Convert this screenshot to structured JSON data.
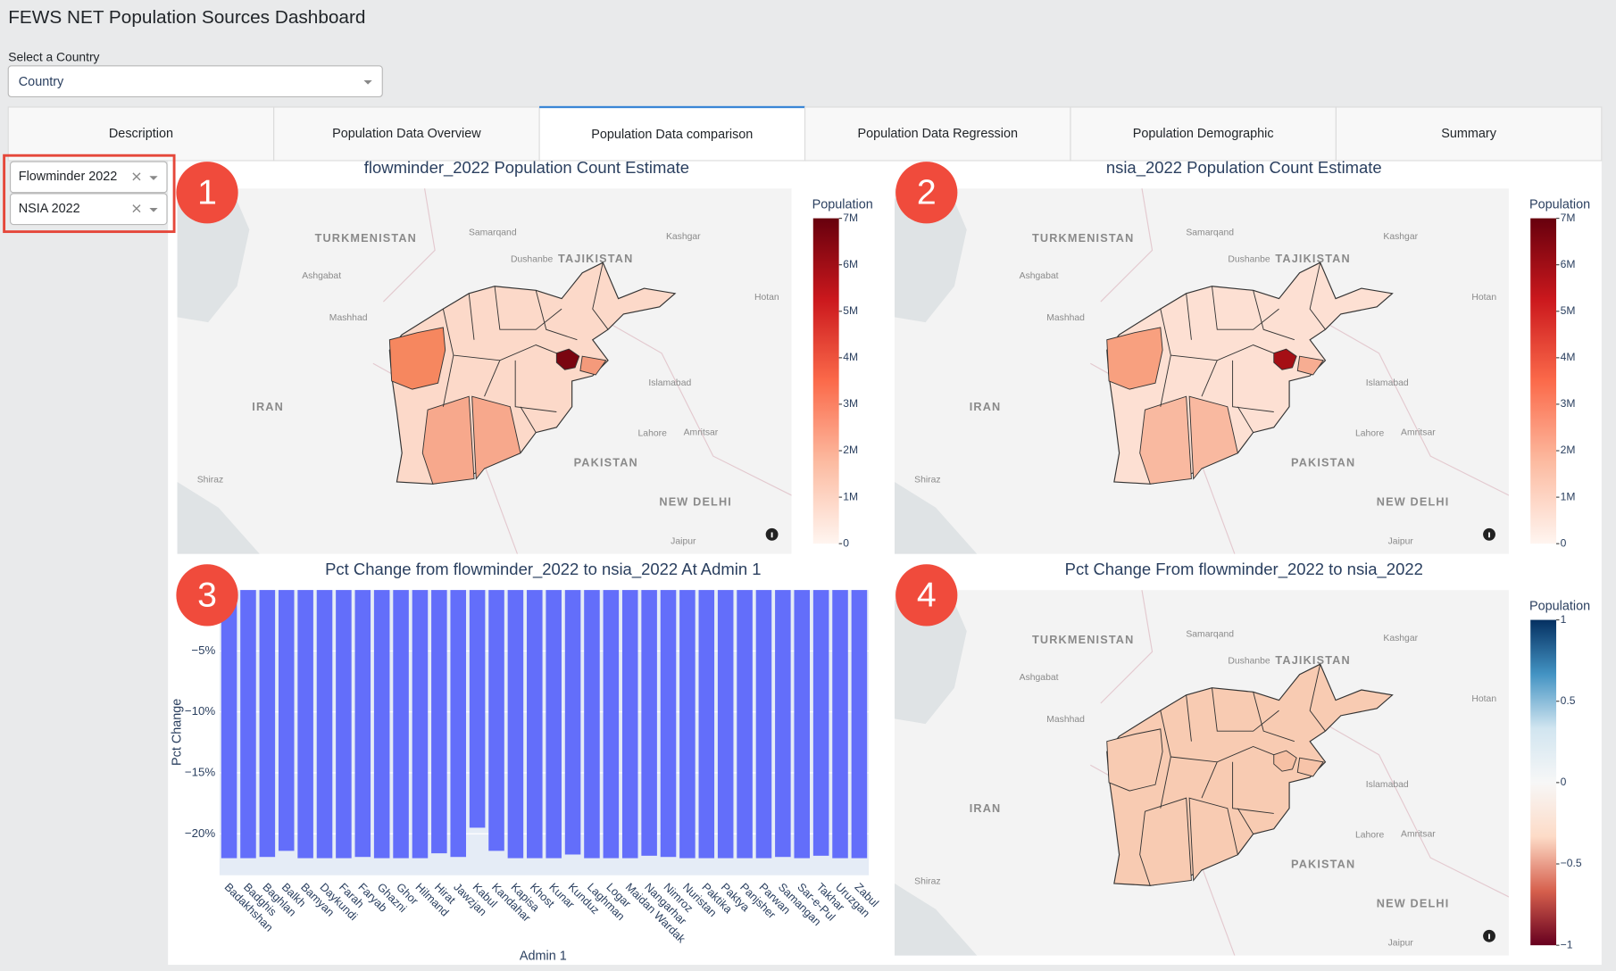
{
  "header": {
    "title": "FEWS NET Population Sources Dashboard",
    "country_label": "Select a Country",
    "country_placeholder": "Country"
  },
  "tabs": [
    "Description",
    "Population Data Overview",
    "Population Data comparison",
    "Population Data Regression",
    "Population Demographic",
    "Summary"
  ],
  "active_tab": 2,
  "sources": [
    "Flowminder 2022",
    "NSIA 2022"
  ],
  "map_places": [
    "TURKMENISTAN",
    "Samarqand",
    "TAJIKISTAN",
    "Kashgar",
    "Ashgabat",
    "Dushanbe",
    "Hotan",
    "Mashhad",
    "IRAN",
    "Islamabad",
    "Lahore",
    "Amritsar",
    "PAKISTAN",
    "Shiraz",
    "NEW DELHI",
    "Jaipur"
  ],
  "chart_data": [
    {
      "type": "map",
      "badge": "1",
      "title": "flowminder_2022 Population Count Estimate",
      "colorbar_title": "Population",
      "clim": [
        0,
        7000000
      ],
      "cticks": [
        0,
        {
          "value": 1000000,
          "label": "1M"
        },
        {
          "value": 2000000,
          "label": "2M"
        },
        {
          "value": 3000000,
          "label": "3M"
        },
        {
          "value": 4000000,
          "label": "4M"
        },
        {
          "value": 5000000,
          "label": "5M"
        },
        {
          "value": 6000000,
          "label": "6M"
        },
        {
          "value": 7000000,
          "label": "7M"
        }
      ],
      "colorscale": [
        "#fff5f0",
        "#fcbba1",
        "#fb6a4a",
        "#cb181d",
        "#67000d"
      ],
      "fills": {
        "base": "#fcd9c9",
        "west": "#f6875f",
        "south": "#f7a88c",
        "east": "#f49a7b",
        "capital": "#7a0510"
      }
    },
    {
      "type": "map",
      "badge": "2",
      "title": "nsia_2022 Population Count Estimate",
      "colorbar_title": "Population",
      "clim": [
        0,
        7000000
      ],
      "cticks": [
        0,
        {
          "value": 1000000,
          "label": "1M"
        },
        {
          "value": 2000000,
          "label": "2M"
        },
        {
          "value": 3000000,
          "label": "3M"
        },
        {
          "value": 4000000,
          "label": "4M"
        },
        {
          "value": 5000000,
          "label": "5M"
        },
        {
          "value": 6000000,
          "label": "6M"
        },
        {
          "value": 7000000,
          "label": "7M"
        }
      ],
      "colorscale": [
        "#fff5f0",
        "#fcbba1",
        "#fb6a4a",
        "#cb181d",
        "#67000d"
      ],
      "fills": {
        "base": "#fde0d3",
        "west": "#f8a07f",
        "south": "#f9b9a0",
        "east": "#f7ad92",
        "capital": "#a50f15"
      }
    },
    {
      "type": "bar",
      "badge": "3",
      "title": "Pct Change from flowminder_2022 to nsia_2022 At Admin 1",
      "xlabel": "Admin 1",
      "ylabel": "Pct Change",
      "categories": [
        "Badakhshan",
        "Badghis",
        "Baghlan",
        "Balkh",
        "Bamyan",
        "Daykundi",
        "Farah",
        "Faryab",
        "Ghazni",
        "Ghor",
        "Hilmand",
        "Hirat",
        "Jawzjan",
        "Kabul",
        "Kandahar",
        "Kapisa",
        "Khost",
        "Kunar",
        "Kunduz",
        "Laghman",
        "Logar",
        "Maidan Wardak",
        "Nangarhar",
        "Nimroz",
        "Nuristan",
        "Paktika",
        "Paktya",
        "Panjsher",
        "Parwan",
        "Samangan",
        "Sar-e-Pul",
        "Takhar",
        "Uruzgan",
        "Zabul"
      ],
      "values": [
        -22.0,
        -22.0,
        -21.9,
        -21.4,
        -22.0,
        -22.0,
        -22.0,
        -21.9,
        -22.0,
        -22.0,
        -22.0,
        -21.6,
        -21.9,
        -19.5,
        -21.4,
        -22.0,
        -22.0,
        -22.0,
        -21.7,
        -22.0,
        -22.0,
        -22.0,
        -21.8,
        -21.9,
        -22.0,
        -22.0,
        -22.0,
        -22.0,
        -22.0,
        -21.9,
        -22.0,
        -21.8,
        -22.0,
        -22.0
      ],
      "color": "#636efa",
      "ylim": [
        -23.4,
        0
      ],
      "yticks": [
        {
          "value": -5,
          "label": "−5%"
        },
        {
          "value": -10,
          "label": "−10%"
        },
        {
          "value": -15,
          "label": "−15%"
        },
        {
          "value": -20,
          "label": "−20%"
        }
      ],
      "grid": true
    },
    {
      "type": "map",
      "badge": "4",
      "title": "Pct Change From flowminder_2022 to nsia_2022",
      "colorbar_title": "Population",
      "clim": [
        -1,
        1
      ],
      "cticks": [
        1,
        0.5,
        0,
        {
          "value": -0.5,
          "label": "−0.5"
        },
        {
          "value": -1,
          "label": "−1"
        }
      ],
      "colorscale": [
        "#67001f",
        "#d6604d",
        "#fddbc7",
        "#f7f7f7",
        "#d1e5f0",
        "#4393c3",
        "#053061"
      ],
      "fills": {
        "base": "#f8cbb2",
        "west": "#f8cbb2",
        "south": "#f8cbb2",
        "east": "#f7c4a9",
        "capital": "#f6c0a4"
      }
    }
  ]
}
